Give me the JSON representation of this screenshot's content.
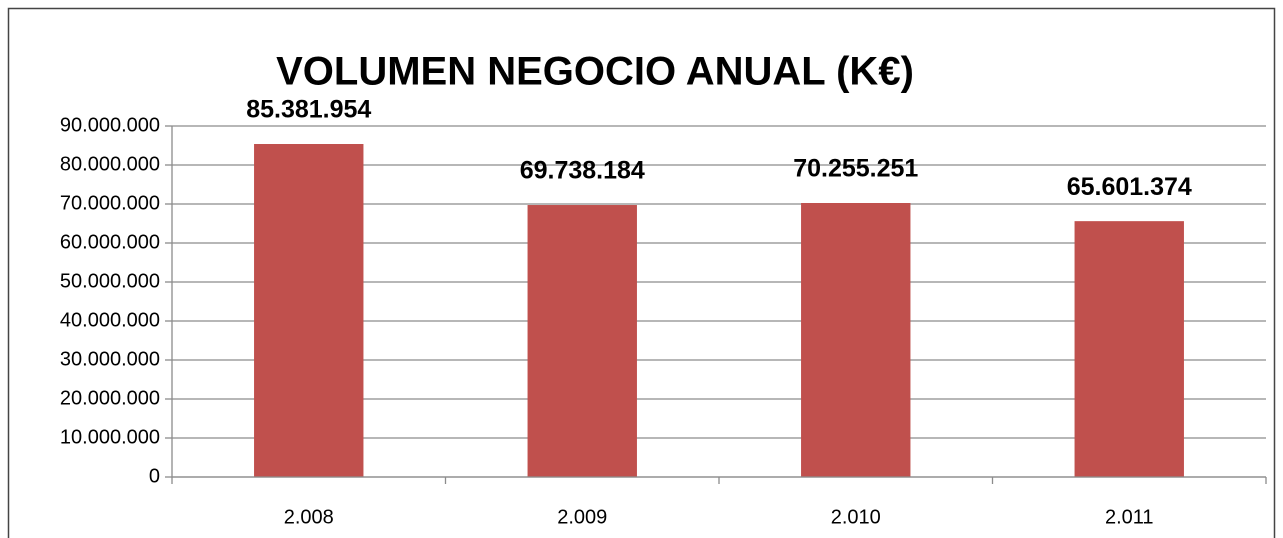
{
  "chart_data": {
    "type": "bar",
    "title": "VOLUMEN NEGOCIO ANUAL (K€)",
    "categories": [
      "2.008",
      "2.009",
      "2.010",
      "2.011"
    ],
    "values": [
      85381954,
      69738184,
      70255251,
      65601374
    ],
    "value_labels": [
      "85.381.954",
      "69.738.184",
      "70.255.251",
      "65.601.374"
    ],
    "color": "#c0504d",
    "ylim": [
      0,
      90000000
    ],
    "yticks": [
      0,
      {
        "value": 10000000,
        "label": "10.000.000"
      },
      {
        "value": 20000000,
        "label": "20.000.000"
      },
      {
        "value": 30000000,
        "label": "30.000.000"
      },
      {
        "value": 40000000,
        "label": "40.000.000"
      },
      {
        "value": 50000000,
        "label": "50.000.000"
      },
      {
        "value": 60000000,
        "label": "60.000.000"
      },
      {
        "value": 70000000,
        "label": "70.000.000"
      },
      {
        "value": 80000000,
        "label": "80.000.000"
      },
      {
        "value": 90000000,
        "label": "90.000.000"
      }
    ],
    "grid": true
  }
}
